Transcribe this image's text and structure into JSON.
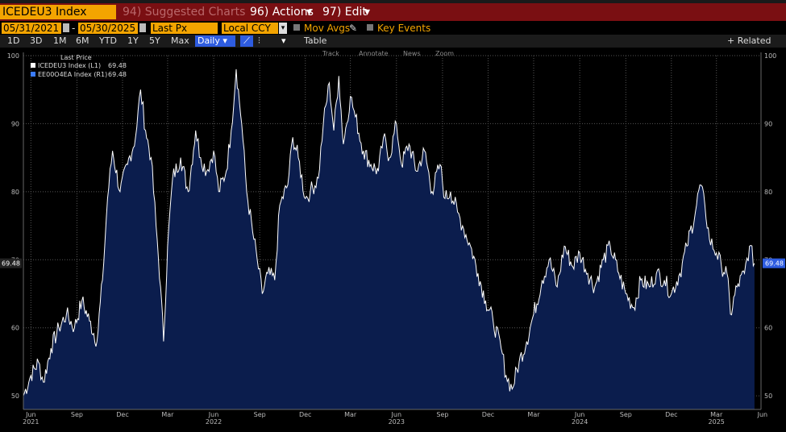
{
  "toolbar": {
    "ticker": "ICEDEU3 Index",
    "suggested": "94) Suggested Charts",
    "actions": "96) Actions",
    "edit": "97) Edit"
  },
  "controls": {
    "start_date": "05/31/2021",
    "end_date": "05/30/2025",
    "price_field": "Last Px",
    "currency": "Local CCY",
    "mov_avgs": "Mov Avgs",
    "key_events": "Key Events",
    "ranges": [
      "1D",
      "3D",
      "1M",
      "6M",
      "YTD",
      "1Y",
      "5Y",
      "Max"
    ],
    "frequency": "Daily",
    "table": "Table",
    "related": "+ Related Dat"
  },
  "chart_tools": [
    "Track",
    "Annotate",
    "News",
    "Zoom"
  ],
  "legend": {
    "header": "Last Price",
    "items": [
      {
        "label": "ICEDEU3 Index (L1)",
        "value": "69.48",
        "color": "#ffffff"
      },
      {
        "label": "EE00O4EA Index (R1)",
        "value": "69.48",
        "color": "#3a7bff"
      }
    ]
  },
  "last_value_label": "69.48",
  "colors": {
    "line": "#ffffff",
    "fill": "#0b1d4d",
    "accent": "#f3a400",
    "toolbar": "#7a0f12"
  },
  "chart_data": {
    "type": "area",
    "ylim": [
      48,
      100
    ],
    "yticks": [
      50,
      60,
      70,
      80,
      90,
      100
    ],
    "month_ticks": [
      {
        "label": "Jun",
        "year": "2021",
        "d": "2021-06-15"
      },
      {
        "label": "Sep",
        "year": "",
        "d": "2021-09-15"
      },
      {
        "label": "Dec",
        "year": "",
        "d": "2021-12-15"
      },
      {
        "label": "Mar",
        "year": "",
        "d": "2022-03-15"
      },
      {
        "label": "Jun",
        "year": "2022",
        "d": "2022-06-15"
      },
      {
        "label": "Sep",
        "year": "",
        "d": "2022-09-15"
      },
      {
        "label": "Dec",
        "year": "",
        "d": "2022-12-15"
      },
      {
        "label": "Mar",
        "year": "",
        "d": "2023-03-15"
      },
      {
        "label": "Jun",
        "year": "2023",
        "d": "2023-06-15"
      },
      {
        "label": "Sep",
        "year": "",
        "d": "2023-09-15"
      },
      {
        "label": "Dec",
        "year": "",
        "d": "2023-12-15"
      },
      {
        "label": "Mar",
        "year": "",
        "d": "2024-03-15"
      },
      {
        "label": "Jun",
        "year": "2024",
        "d": "2024-06-15"
      },
      {
        "label": "Sep",
        "year": "",
        "d": "2024-09-15"
      },
      {
        "label": "Dec",
        "year": "",
        "d": "2024-12-15"
      },
      {
        "label": "Mar",
        "year": "2025",
        "d": "2025-03-15"
      },
      {
        "label": "Jun",
        "year": "",
        "d": "2025-06-15"
      }
    ],
    "series": [
      {
        "name": "ICEDEU3 Index",
        "points": [
          [
            "2021-05-31",
            50
          ],
          [
            "2021-06-15",
            53
          ],
          [
            "2021-06-30",
            55
          ],
          [
            "2021-07-10",
            52
          ],
          [
            "2021-07-25",
            57
          ],
          [
            "2021-08-10",
            60
          ],
          [
            "2021-08-25",
            62
          ],
          [
            "2021-09-10",
            60
          ],
          [
            "2021-09-25",
            64
          ],
          [
            "2021-10-10",
            61
          ],
          [
            "2021-10-25",
            58
          ],
          [
            "2021-11-05",
            67
          ],
          [
            "2021-11-15",
            79
          ],
          [
            "2021-11-25",
            86
          ],
          [
            "2021-12-10",
            80
          ],
          [
            "2021-12-25",
            84
          ],
          [
            "2022-01-10",
            88
          ],
          [
            "2022-01-20",
            95
          ],
          [
            "2022-01-30",
            89
          ],
          [
            "2022-02-10",
            85
          ],
          [
            "2022-02-20",
            75
          ],
          [
            "2022-03-01",
            66
          ],
          [
            "2022-03-07",
            58
          ],
          [
            "2022-03-15",
            72
          ],
          [
            "2022-03-25",
            82
          ],
          [
            "2022-04-10",
            85
          ],
          [
            "2022-04-25",
            80
          ],
          [
            "2022-05-10",
            89
          ],
          [
            "2022-05-20",
            85
          ],
          [
            "2022-06-01",
            83
          ],
          [
            "2022-06-15",
            86
          ],
          [
            "2022-06-25",
            80
          ],
          [
            "2022-07-10",
            83
          ],
          [
            "2022-07-20",
            89
          ],
          [
            "2022-07-30",
            98
          ],
          [
            "2022-08-10",
            90
          ],
          [
            "2022-08-20",
            80
          ],
          [
            "2022-09-01",
            74
          ],
          [
            "2022-09-10",
            70
          ],
          [
            "2022-09-20",
            65
          ],
          [
            "2022-10-01",
            68
          ],
          [
            "2022-10-15",
            67
          ],
          [
            "2022-10-25",
            78
          ],
          [
            "2022-11-10",
            81
          ],
          [
            "2022-11-20",
            88
          ],
          [
            "2022-12-01",
            85
          ],
          [
            "2022-12-15",
            79
          ],
          [
            "2022-12-25",
            80
          ],
          [
            "2023-01-10",
            82
          ],
          [
            "2023-01-20",
            90
          ],
          [
            "2023-02-01",
            96
          ],
          [
            "2023-02-10",
            89
          ],
          [
            "2023-02-20",
            97
          ],
          [
            "2023-03-01",
            87
          ],
          [
            "2023-03-15",
            94
          ],
          [
            "2023-03-25",
            91
          ],
          [
            "2023-04-10",
            86
          ],
          [
            "2023-04-25",
            84
          ],
          [
            "2023-05-10",
            83
          ],
          [
            "2023-05-20",
            88
          ],
          [
            "2023-06-01",
            85
          ],
          [
            "2023-06-15",
            90
          ],
          [
            "2023-06-25",
            84
          ],
          [
            "2023-07-10",
            87
          ],
          [
            "2023-07-25",
            83
          ],
          [
            "2023-08-10",
            86
          ],
          [
            "2023-08-25",
            80
          ],
          [
            "2023-09-10",
            84
          ],
          [
            "2023-09-20",
            79
          ],
          [
            "2023-10-01",
            80
          ],
          [
            "2023-10-15",
            77
          ],
          [
            "2023-10-25",
            75
          ],
          [
            "2023-11-10",
            72
          ],
          [
            "2023-11-25",
            68
          ],
          [
            "2023-12-10",
            64
          ],
          [
            "2023-12-25",
            61
          ],
          [
            "2024-01-10",
            57
          ],
          [
            "2024-01-20",
            53
          ],
          [
            "2024-02-01",
            51
          ],
          [
            "2024-02-15",
            55
          ],
          [
            "2024-03-01",
            58
          ],
          [
            "2024-03-15",
            62
          ],
          [
            "2024-04-01",
            67
          ],
          [
            "2024-04-15",
            70
          ],
          [
            "2024-05-01",
            66
          ],
          [
            "2024-05-15",
            72
          ],
          [
            "2024-06-01",
            69
          ],
          [
            "2024-06-15",
            71
          ],
          [
            "2024-07-01",
            68
          ],
          [
            "2024-07-15",
            66
          ],
          [
            "2024-08-01",
            70
          ],
          [
            "2024-08-15",
            72
          ],
          [
            "2024-09-01",
            68
          ],
          [
            "2024-09-15",
            65
          ],
          [
            "2024-10-01",
            63
          ],
          [
            "2024-10-15",
            67
          ],
          [
            "2024-11-01",
            66
          ],
          [
            "2024-11-15",
            68
          ],
          [
            "2024-12-01",
            67
          ],
          [
            "2024-12-15",
            65
          ],
          [
            "2025-01-01",
            68
          ],
          [
            "2025-01-15",
            72
          ],
          [
            "2025-02-01",
            77
          ],
          [
            "2025-02-10",
            81
          ],
          [
            "2025-02-20",
            78
          ],
          [
            "2025-03-01",
            73
          ],
          [
            "2025-03-15",
            71
          ],
          [
            "2025-03-25",
            69
          ],
          [
            "2025-04-05",
            68
          ],
          [
            "2025-04-12",
            62
          ],
          [
            "2025-04-25",
            66
          ],
          [
            "2025-05-10",
            68
          ],
          [
            "2025-05-20",
            72
          ],
          [
            "2025-05-30",
            69.48
          ]
        ]
      }
    ]
  }
}
